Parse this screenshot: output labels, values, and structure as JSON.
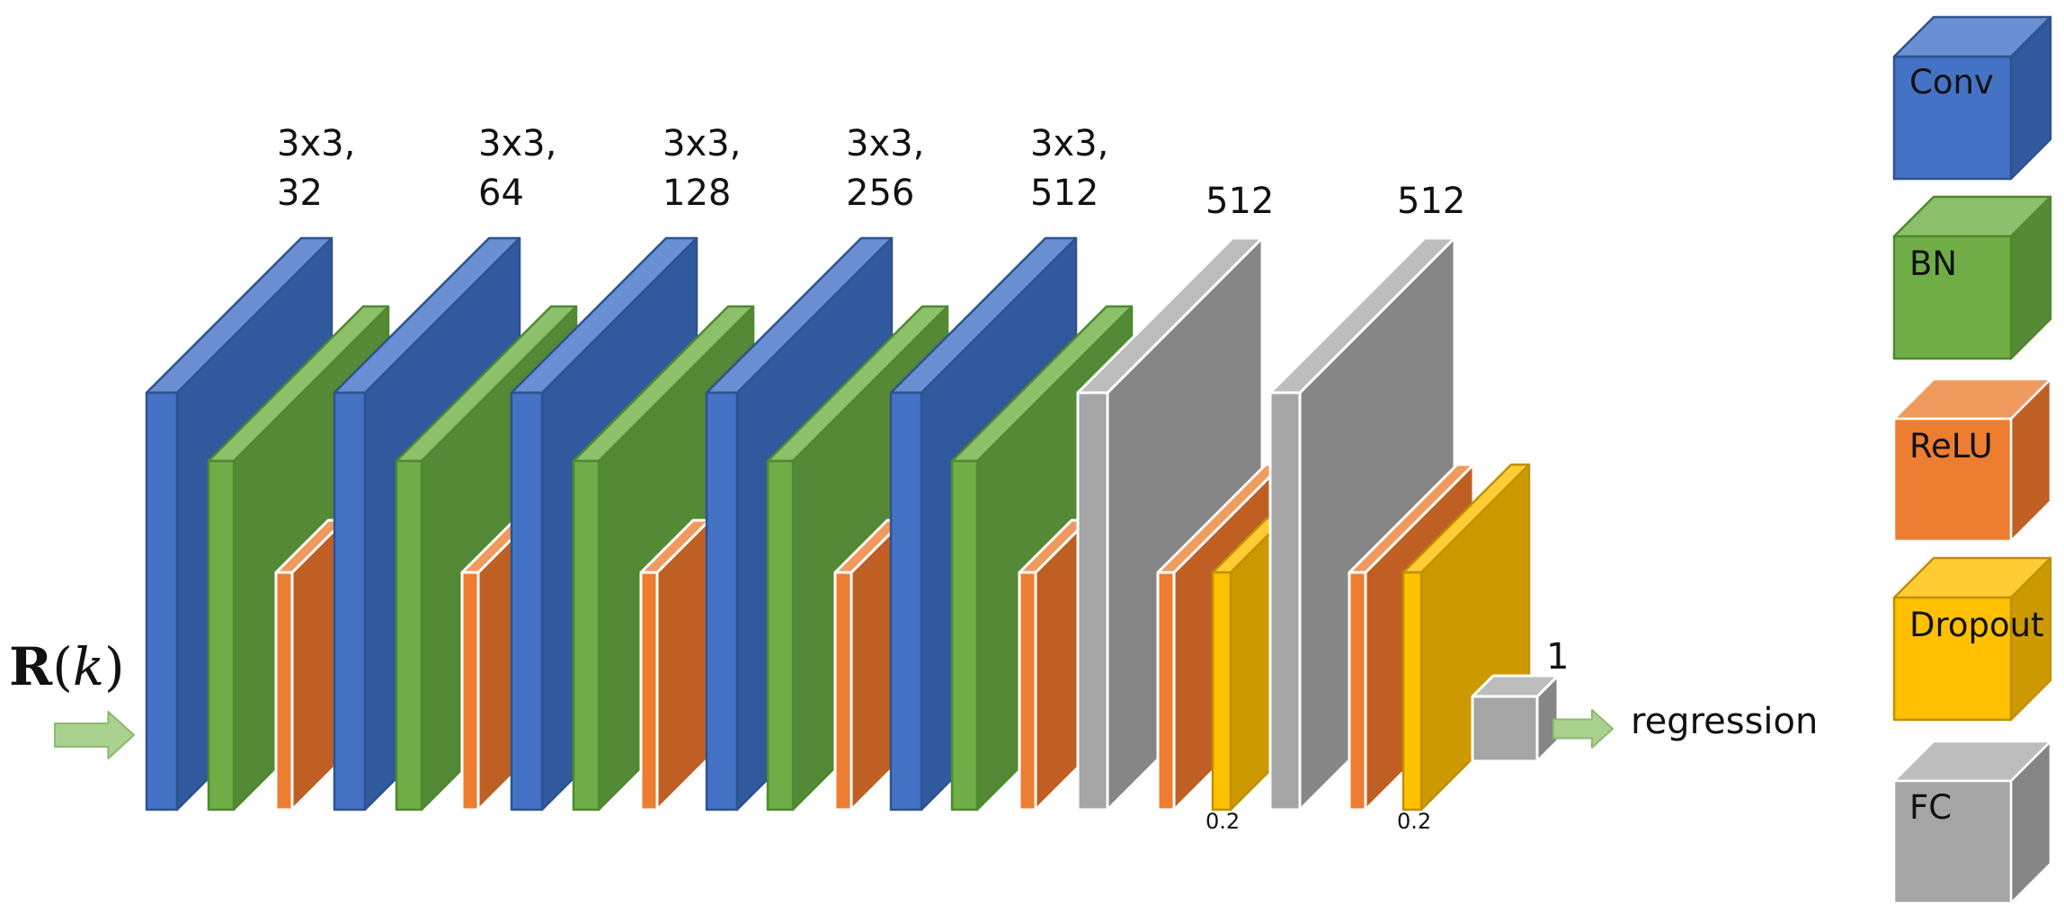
{
  "input": {
    "symbol": "R",
    "variable": "k"
  },
  "conv_blocks": [
    {
      "kernel": "3x3,",
      "filters": "32"
    },
    {
      "kernel": "3x3,",
      "filters": "64"
    },
    {
      "kernel": "3x3,",
      "filters": "128"
    },
    {
      "kernel": "3x3,",
      "filters": "256"
    },
    {
      "kernel": "3x3,",
      "filters": "512"
    }
  ],
  "fc_blocks": [
    {
      "units": "512",
      "dropout": "0.2"
    },
    {
      "units": "512",
      "dropout": "0.2"
    }
  ],
  "output": {
    "units": "1",
    "label": "regression"
  },
  "legend": [
    {
      "key": "conv",
      "label": "Conv"
    },
    {
      "key": "bn",
      "label": "BN"
    },
    {
      "key": "relu",
      "label": "ReLU"
    },
    {
      "key": "dropout",
      "label": "Dropout"
    },
    {
      "key": "fc",
      "label": "FC"
    }
  ],
  "colors": {
    "conv": {
      "front": "#4472C4",
      "top": "#6A8FD3",
      "side": "#31599E",
      "stroke": "#2F528F"
    },
    "bn": {
      "front": "#70AD47",
      "top": "#8DC06B",
      "side": "#548935",
      "stroke": "#4E8A2E"
    },
    "relu": {
      "front": "#ED7D31",
      "top": "#F19A5E",
      "side": "#C05F23",
      "stroke": "#ffffff"
    },
    "dropout": {
      "front": "#FFC000",
      "top": "#FFCD33",
      "side": "#CC9A00",
      "stroke": "#BF9000"
    },
    "fc": {
      "front": "#A5A5A5",
      "top": "#BDBDBD",
      "side": "#868686",
      "stroke": "#ffffff"
    },
    "arrow": {
      "fill": "#A9D18E",
      "stroke": "#8CB872"
    }
  }
}
